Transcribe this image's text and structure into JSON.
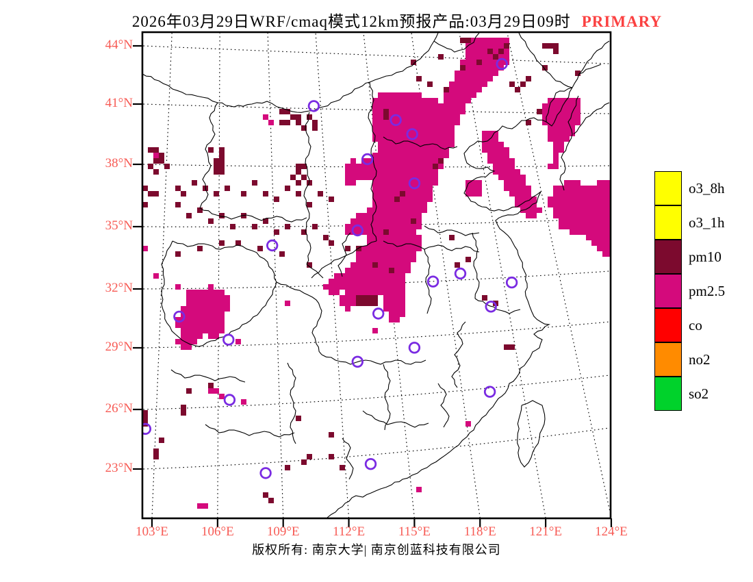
{
  "title": {
    "main": "2026年03月29日WRF/cmaq模式12km预报产品:03月29日09时",
    "highlight": "PRIMARY"
  },
  "footer": {
    "copyright": "版权所有: 南京大学| 南京创蓝科技有限公司"
  },
  "colors": {
    "axis_labels": "#f75b55",
    "title_highlight": "#fb4141",
    "station_ring": "#7a2be2",
    "boundary": "#000000"
  },
  "chart_data": {
    "type": "heatmap",
    "description": "WRF/CMAQ 12km primary-pollutant forecast map of eastern China; colored grid cells mark the dominant pollutant, open purple rings mark cities",
    "axes": {
      "lon_tick_labels": [
        "103°E",
        "106°E",
        "109°E",
        "112°E",
        "115°E",
        "118°E",
        "121°E",
        "124°E"
      ],
      "lon_tick_values": [
        103,
        106,
        109,
        112,
        115,
        118,
        121,
        124
      ],
      "lat_tick_labels": [
        "44°N",
        "41°N",
        "38°N",
        "35°N",
        "32°N",
        "29°N",
        "26°N",
        "23°N"
      ],
      "lat_tick_values": [
        44,
        41,
        38,
        35,
        32,
        29,
        26,
        23
      ],
      "lon_range": [
        102.6,
        124.0
      ],
      "lat_range": [
        20.5,
        44.4
      ],
      "grid": "dotted graticule every 3 degrees"
    },
    "legend": [
      {
        "label": "o3_8h",
        "color": "#ffff00"
      },
      {
        "label": "o3_1h",
        "color": "#ffff00"
      },
      {
        "label": "pm10",
        "color": "#7c0a2e"
      },
      {
        "label": "pm2.5",
        "color": "#d40a7c"
      },
      {
        "label": "co",
        "color": "#ff0000"
      },
      {
        "label": "no2",
        "color": "#ff8b00"
      },
      {
        "label": "so2",
        "color": "#00d22b"
      }
    ],
    "pm25_regions": [
      {
        "name": "northeast-band",
        "points": [
          [
            117.5,
            44.45
          ],
          [
            119.3,
            44.45
          ],
          [
            119.4,
            43.45
          ],
          [
            118.5,
            42.3
          ],
          [
            117.6,
            41.35
          ],
          [
            116.8,
            40.25
          ],
          [
            116.1,
            39.5
          ],
          [
            115.45,
            39.1
          ],
          [
            115.1,
            39.6
          ],
          [
            115.8,
            40.65
          ],
          [
            116.45,
            41.75
          ],
          [
            116.95,
            42.8
          ],
          [
            117.3,
            43.7
          ]
        ]
      },
      {
        "name": "north-china-plain",
        "points": [
          [
            113.2,
            41.6
          ],
          [
            114.8,
            41.9
          ],
          [
            116.1,
            41.35
          ],
          [
            117.0,
            40.3
          ],
          [
            116.7,
            39.0
          ],
          [
            116.3,
            38.2
          ],
          [
            115.9,
            37.0
          ],
          [
            115.5,
            35.8
          ],
          [
            115.1,
            34.8
          ],
          [
            115.5,
            34.4
          ],
          [
            115.15,
            33.7
          ],
          [
            114.7,
            32.8
          ],
          [
            114.45,
            31.9
          ],
          [
            114.7,
            31.1
          ],
          [
            114.6,
            30.5
          ],
          [
            113.95,
            30.35
          ],
          [
            113.45,
            31.1
          ],
          [
            113.6,
            31.75
          ],
          [
            113.1,
            31.45
          ],
          [
            112.45,
            31.1
          ],
          [
            111.8,
            30.95
          ],
          [
            111.5,
            31.5
          ],
          [
            111.95,
            31.9
          ],
          [
            111.2,
            31.7
          ],
          [
            110.75,
            32.1
          ],
          [
            111.4,
            32.65
          ],
          [
            111.95,
            33.1
          ],
          [
            112.45,
            33.75
          ],
          [
            112.95,
            34.4
          ],
          [
            112.6,
            34.65
          ],
          [
            112.0,
            34.5
          ],
          [
            111.6,
            34.95
          ],
          [
            112.1,
            35.35
          ],
          [
            112.7,
            35.85
          ],
          [
            113.1,
            36.3
          ],
          [
            113.2,
            37.2
          ],
          [
            112.8,
            37.45
          ],
          [
            112.3,
            37.25
          ],
          [
            111.95,
            37.7
          ],
          [
            112.3,
            38.2
          ],
          [
            112.9,
            38.5
          ],
          [
            113.3,
            39.0
          ],
          [
            113.1,
            39.7
          ],
          [
            112.95,
            40.6
          ]
        ]
      },
      {
        "name": "shanxi-arm",
        "points": [
          [
            111.8,
            38.3
          ],
          [
            112.4,
            38.55
          ],
          [
            112.6,
            37.7
          ],
          [
            112.3,
            37.1
          ],
          [
            111.85,
            37.3
          ],
          [
            111.7,
            37.9
          ]
        ]
      },
      {
        "name": "yellow-sea-band",
        "points": [
          [
            118.0,
            39.7
          ],
          [
            118.65,
            39.9
          ],
          [
            119.15,
            39.15
          ],
          [
            119.65,
            38.1
          ],
          [
            120.1,
            37.4
          ],
          [
            120.5,
            36.5
          ],
          [
            120.8,
            35.8
          ],
          [
            120.2,
            35.5
          ],
          [
            119.6,
            36.3
          ],
          [
            119.1,
            37.1
          ],
          [
            118.6,
            37.9
          ],
          [
            118.15,
            38.8
          ]
        ]
      },
      {
        "name": "liaoning-blob",
        "points": [
          [
            121.0,
            41.55
          ],
          [
            122.5,
            41.55
          ],
          [
            122.55,
            40.5
          ],
          [
            122.3,
            39.7
          ],
          [
            121.85,
            39.15
          ],
          [
            121.65,
            38.45
          ],
          [
            121.4,
            37.8
          ],
          [
            121.15,
            37.85
          ],
          [
            121.3,
            38.6
          ],
          [
            121.35,
            39.15
          ],
          [
            121.0,
            39.7
          ],
          [
            120.9,
            40.65
          ]
        ]
      },
      {
        "name": "east-sea-blob",
        "points": [
          [
            121.35,
            37.0
          ],
          [
            122.15,
            37.4
          ],
          [
            123.0,
            37.2
          ],
          [
            124.05,
            37.4
          ],
          [
            124.05,
            33.55
          ],
          [
            123.35,
            33.8
          ],
          [
            122.9,
            34.5
          ],
          [
            122.3,
            34.8
          ],
          [
            121.7,
            34.9
          ],
          [
            121.3,
            35.75
          ],
          [
            121.1,
            36.4
          ]
        ]
      },
      {
        "name": "sichuan-blob",
        "points": [
          [
            104.7,
            31.9
          ],
          [
            105.75,
            32.1
          ],
          [
            106.55,
            31.75
          ],
          [
            106.7,
            31.1
          ],
          [
            106.25,
            30.6
          ],
          [
            106.45,
            30.05
          ],
          [
            105.95,
            29.45
          ],
          [
            105.4,
            29.65
          ],
          [
            105.0,
            29.25
          ],
          [
            104.5,
            28.9
          ],
          [
            104.1,
            29.45
          ],
          [
            104.4,
            30.0
          ],
          [
            103.95,
            30.3
          ],
          [
            104.25,
            30.8
          ],
          [
            104.6,
            31.2
          ]
        ]
      },
      {
        "name": "shandong-piece",
        "points": [
          [
            117.3,
            37.45
          ],
          [
            118.0,
            37.45
          ],
          [
            118.0,
            36.55
          ],
          [
            117.5,
            36.4
          ],
          [
            117.2,
            36.9
          ]
        ]
      }
    ],
    "pm25_cells": [
      [
        103.3,
        38.55
      ],
      [
        106.05,
        38.4
      ],
      [
        108.3,
        40.65
      ],
      [
        108.35,
        40.3
      ],
      [
        102.5,
        36.1
      ],
      [
        102.55,
        34.25
      ],
      [
        102.7,
        33.95
      ],
      [
        103.2,
        32.5
      ],
      [
        104.25,
        32.2
      ],
      [
        109.2,
        31.35
      ],
      [
        107.05,
        29.4
      ],
      [
        113.3,
        29.9
      ],
      [
        107.2,
        26.4
      ],
      [
        105.7,
        26.85
      ],
      [
        106.05,
        26.85
      ],
      [
        106.2,
        26.5
      ],
      [
        105.2,
        21.2
      ],
      [
        105.5,
        21.2
      ],
      [
        108.1,
        21.7
      ],
      [
        108.35,
        21.5
      ],
      [
        117.35,
        25.3
      ],
      [
        117.5,
        25.15
      ],
      [
        115.2,
        21.9
      ]
    ],
    "pm10_regions": [
      {
        "name": "hubei-patch",
        "points": [
          [
            112.35,
            31.8
          ],
          [
            113.25,
            31.8
          ],
          [
            113.25,
            31.12
          ],
          [
            112.35,
            31.12
          ]
        ]
      }
    ],
    "pm10_cells": [
      [
        103.0,
        38.8
      ],
      [
        103.25,
        38.8
      ],
      [
        103.5,
        38.65
      ],
      [
        103.1,
        38.45
      ],
      [
        103.35,
        38.25
      ],
      [
        103.6,
        38.1
      ],
      [
        103.0,
        38.0
      ],
      [
        103.25,
        37.85
      ],
      [
        105.8,
        38.8
      ],
      [
        106.1,
        38.8
      ],
      [
        106.3,
        38.6
      ],
      [
        105.9,
        38.5
      ],
      [
        106.2,
        38.35
      ],
      [
        106.0,
        38.15
      ],
      [
        106.3,
        38.0
      ],
      [
        105.85,
        37.9
      ],
      [
        106.15,
        37.75
      ],
      [
        108.9,
        40.7
      ],
      [
        109.2,
        40.75
      ],
      [
        109.5,
        40.6
      ],
      [
        109.8,
        40.5
      ],
      [
        110.1,
        40.45
      ],
      [
        110.4,
        40.3
      ],
      [
        109.3,
        40.4
      ],
      [
        109.6,
        40.25
      ],
      [
        110.0,
        40.1
      ],
      [
        110.5,
        40.0
      ],
      [
        109.0,
        40.2
      ],
      [
        109.6,
        38.1
      ],
      [
        109.9,
        38.0
      ],
      [
        109.7,
        37.8
      ],
      [
        110.0,
        37.65
      ],
      [
        109.5,
        37.5
      ],
      [
        109.8,
        37.35
      ],
      [
        110.1,
        37.2
      ],
      [
        102.6,
        36.9
      ],
      [
        102.9,
        36.75
      ],
      [
        103.2,
        36.6
      ],
      [
        102.7,
        36.3
      ],
      [
        104.1,
        37.1
      ],
      [
        104.5,
        36.8
      ],
      [
        105.0,
        37.3
      ],
      [
        105.5,
        36.95
      ],
      [
        106.0,
        36.6
      ],
      [
        106.5,
        37.0
      ],
      [
        107.1,
        36.7
      ],
      [
        107.6,
        37.2
      ],
      [
        108.1,
        36.85
      ],
      [
        108.6,
        36.5
      ],
      [
        109.1,
        36.9
      ],
      [
        109.7,
        36.6
      ],
      [
        110.2,
        36.3
      ],
      [
        110.7,
        36.8
      ],
      [
        111.2,
        36.4
      ],
      [
        104.2,
        36.1
      ],
      [
        104.6,
        35.7
      ],
      [
        105.3,
        35.9
      ],
      [
        105.8,
        35.3
      ],
      [
        106.3,
        35.6
      ],
      [
        106.8,
        35.2
      ],
      [
        107.3,
        35.7
      ],
      [
        107.8,
        35.1
      ],
      [
        108.3,
        35.4
      ],
      [
        108.8,
        34.9
      ],
      [
        109.3,
        35.2
      ],
      [
        109.9,
        34.8
      ],
      [
        110.4,
        35.1
      ],
      [
        110.9,
        34.6
      ],
      [
        105.1,
        34.0
      ],
      [
        104.3,
        33.7
      ],
      [
        106.2,
        34.2
      ],
      [
        107.0,
        34.4
      ],
      [
        108.0,
        33.9
      ],
      [
        109.0,
        33.6
      ],
      [
        110.2,
        33.3
      ],
      [
        111.3,
        34.2
      ],
      [
        111.9,
        33.9
      ],
      [
        112.4,
        34.1
      ],
      [
        113.3,
        33.2
      ],
      [
        113.9,
        32.9
      ],
      [
        115.3,
        42.5
      ],
      [
        115.8,
        42.2
      ],
      [
        116.5,
        41.9
      ],
      [
        114.9,
        43.3
      ],
      [
        116.3,
        43.6
      ],
      [
        117.2,
        42.9
      ],
      [
        118.4,
        43.85
      ],
      [
        118.8,
        43.5
      ],
      [
        118.0,
        43.2
      ],
      [
        119.3,
        44.15
      ],
      [
        119.05,
        43.95
      ],
      [
        120.9,
        44.2
      ],
      [
        121.3,
        44.0
      ],
      [
        121.5,
        43.75
      ],
      [
        121.0,
        43.0
      ],
      [
        120.2,
        42.55
      ],
      [
        119.85,
        42.3
      ],
      [
        120.8,
        40.9
      ],
      [
        120.25,
        40.35
      ],
      [
        119.5,
        42.25
      ],
      [
        119.7,
        42.0
      ],
      [
        117.1,
        44.4
      ],
      [
        117.55,
        44.3
      ],
      [
        121.35,
        44.05
      ],
      [
        122.5,
        42.7
      ],
      [
        113.6,
        40.8
      ],
      [
        113.75,
        40.55
      ],
      [
        116.2,
        38.3
      ],
      [
        116.0,
        38.05
      ],
      [
        114.4,
        36.6
      ],
      [
        114.2,
        36.35
      ],
      [
        115.0,
        35.3
      ],
      [
        113.8,
        34.9
      ],
      [
        116.8,
        34.5
      ],
      [
        117.4,
        33.5
      ],
      [
        116.9,
        33.2
      ],
      [
        118.3,
        31.65
      ],
      [
        118.75,
        31.25
      ],
      [
        119.2,
        29.15
      ],
      [
        119.4,
        29.05
      ],
      [
        109.75,
        25.45
      ],
      [
        110.1,
        23.7
      ],
      [
        110.3,
        23.6
      ],
      [
        109.85,
        23.45
      ],
      [
        109.2,
        23.05
      ],
      [
        111.1,
        24.6
      ],
      [
        111.1,
        23.6
      ],
      [
        111.65,
        23.05
      ],
      [
        102.5,
        25.9
      ],
      [
        102.7,
        25.9
      ],
      [
        102.5,
        25.55
      ],
      [
        102.75,
        25.5
      ],
      [
        102.6,
        25.2
      ],
      [
        102.8,
        25.15
      ],
      [
        102.55,
        24.85
      ],
      [
        104.35,
        26.15
      ],
      [
        104.5,
        25.9
      ],
      [
        104.8,
        26.8
      ],
      [
        105.75,
        27.15
      ],
      [
        103.4,
        24.55
      ],
      [
        103.2,
        24.0
      ],
      [
        103.3,
        23.75
      ],
      [
        108.2,
        21.6
      ],
      [
        108.45,
        21.35
      ]
    ],
    "stations": [
      [
        110.4,
        41.1
      ],
      [
        119.0,
        43.2
      ],
      [
        114.15,
        40.4
      ],
      [
        114.9,
        39.7
      ],
      [
        112.85,
        38.45
      ],
      [
        115.0,
        37.25
      ],
      [
        112.4,
        34.9
      ],
      [
        108.5,
        34.15
      ],
      [
        104.25,
        30.6
      ],
      [
        106.5,
        29.45
      ],
      [
        117.1,
        32.75
      ],
      [
        115.85,
        32.35
      ],
      [
        119.45,
        32.3
      ],
      [
        118.5,
        31.1
      ],
      [
        113.35,
        30.75
      ],
      [
        115.0,
        29.05
      ],
      [
        112.4,
        28.35
      ],
      [
        118.45,
        26.85
      ],
      [
        106.55,
        26.45
      ],
      [
        102.7,
        25.0
      ],
      [
        108.2,
        22.8
      ],
      [
        113.0,
        23.25
      ]
    ]
  }
}
